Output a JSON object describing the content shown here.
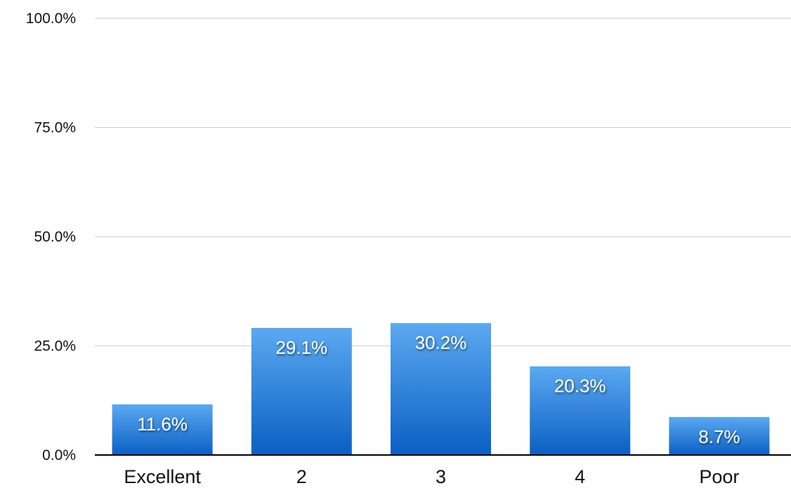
{
  "chart_data": {
    "type": "bar",
    "categories": [
      "Excellent",
      "2",
      "3",
      "4",
      "Poor"
    ],
    "values": [
      11.6,
      29.1,
      30.2,
      20.3,
      8.7
    ],
    "value_labels": [
      "11.6%",
      "29.1%",
      "30.2%",
      "20.3%",
      "8.7%"
    ],
    "title": "",
    "xlabel": "",
    "ylabel": "",
    "ylim": [
      0,
      100
    ],
    "yticks": [
      0,
      25,
      50,
      75,
      100
    ],
    "ytick_labels": [
      "0.0%",
      "25.0%",
      "50.0%",
      "75.0%",
      "100.0%"
    ],
    "grid": true,
    "legend": "none",
    "colors": {
      "bar_top": "#5ba9f1",
      "bar_bottom": "#0a5fc3",
      "grid": "#cfcfcf",
      "axis": "#000000"
    }
  }
}
